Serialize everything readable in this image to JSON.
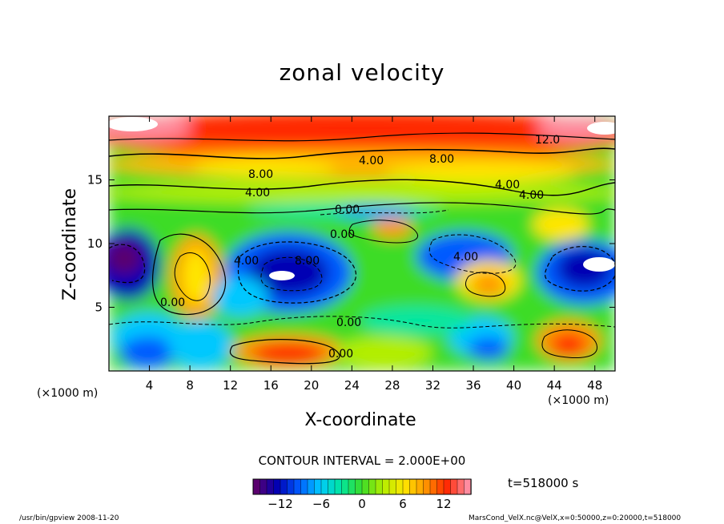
{
  "chart_data": {
    "type": "heatmap",
    "title": "zonal velocity",
    "xlabel": "X-coordinate",
    "ylabel": "Z-coordinate",
    "x_unit_label": "(×1000 m)",
    "x_ticks": [
      4,
      8,
      12,
      16,
      20,
      24,
      28,
      32,
      36,
      40,
      44,
      48
    ],
    "y_ticks": [
      5,
      10,
      15
    ],
    "xlim": [
      0,
      50
    ],
    "ylim": [
      0,
      20
    ],
    "contour_interval_text": "CONTOUR INTERVAL = 2.000E+00",
    "colorbar": {
      "ticks": [
        -12,
        -6,
        0,
        6,
        12
      ],
      "range": [
        -16,
        16
      ],
      "colors": [
        "#5a006e",
        "#0000b4",
        "#005aff",
        "#00c8ff",
        "#00e6a0",
        "#3cdc28",
        "#b4ee00",
        "#ffe600",
        "#ff9600",
        "#ff2800",
        "#ff8ca0"
      ]
    },
    "contour_labels": [
      "12.0",
      "8.00",
      "4.00",
      "8.00",
      "4.00",
      "4.00",
      "4.00",
      "0.00",
      "0.00",
      "0.00",
      "4.00",
      "8.00",
      "0.00",
      "0.00",
      "4.00"
    ],
    "time_label": "t=518000 s"
  },
  "footer": {
    "left": "/usr/bin/gpview  2008-11-20",
    "right": "MarsCond_VelX.nc@VelX,x=0:50000,z=0:20000,t=518000"
  }
}
